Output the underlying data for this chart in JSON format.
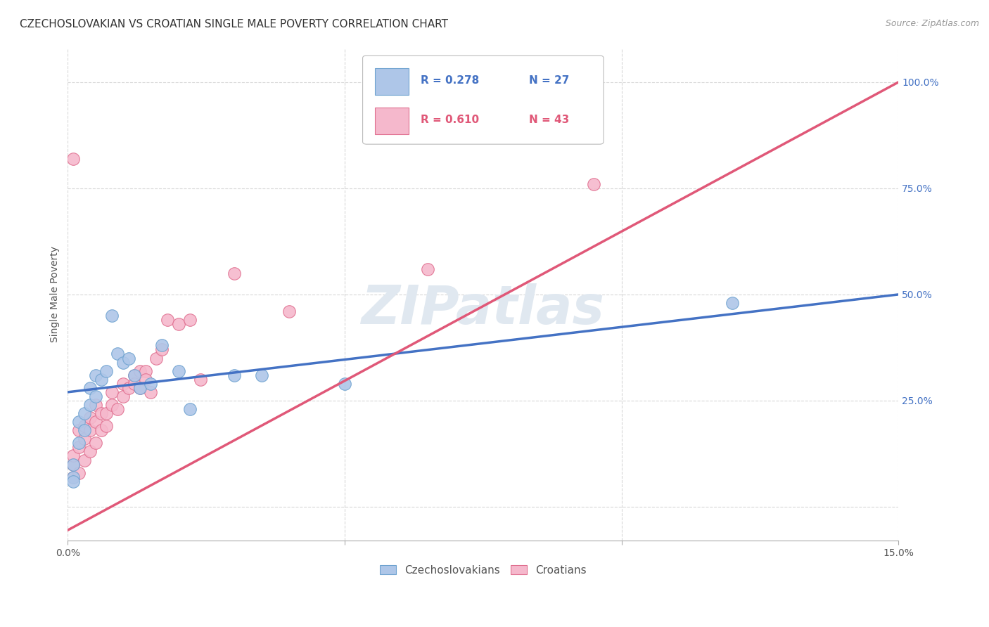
{
  "title": "CZECHOSLOVAKIAN VS CROATIAN SINGLE MALE POVERTY CORRELATION CHART",
  "source": "Source: ZipAtlas.com",
  "ylabel": "Single Male Poverty",
  "xlim": [
    0.0,
    0.15
  ],
  "ylim": [
    -0.08,
    1.08
  ],
  "xticks": [
    0.0,
    0.05,
    0.1,
    0.15
  ],
  "xticklabels": [
    "0.0%",
    "",
    "",
    "15.0%"
  ],
  "yticks_right": [
    0.25,
    0.5,
    0.75,
    1.0
  ],
  "yticklabels_right": [
    "25.0%",
    "50.0%",
    "75.0%",
    "100.0%"
  ],
  "background_color": "#ffffff",
  "grid_color": "#d8d8d8",
  "watermark": "ZIPatlas",
  "watermark_color": "#e0e8f0",
  "czecho_color": "#aec6e8",
  "czecho_edge": "#6fa3d0",
  "czecho_line_color": "#4472c4",
  "czecho_R": 0.278,
  "czecho_N": 27,
  "czecho_x": [
    0.001,
    0.001,
    0.002,
    0.002,
    0.003,
    0.003,
    0.004,
    0.004,
    0.005,
    0.005,
    0.006,
    0.007,
    0.008,
    0.009,
    0.01,
    0.011,
    0.012,
    0.013,
    0.015,
    0.017,
    0.02,
    0.022,
    0.03,
    0.035,
    0.05,
    0.12,
    0.001
  ],
  "czecho_y": [
    0.07,
    0.1,
    0.15,
    0.2,
    0.22,
    0.18,
    0.24,
    0.28,
    0.26,
    0.31,
    0.3,
    0.32,
    0.45,
    0.36,
    0.34,
    0.35,
    0.31,
    0.28,
    0.29,
    0.38,
    0.32,
    0.23,
    0.31,
    0.31,
    0.29,
    0.48,
    0.06
  ],
  "croatian_color": "#f5b8cc",
  "croatian_edge": "#e07090",
  "croatian_line_color": "#e05878",
  "croatian_R": 0.61,
  "croatian_N": 43,
  "croatian_x": [
    0.001,
    0.001,
    0.001,
    0.002,
    0.002,
    0.002,
    0.003,
    0.003,
    0.003,
    0.004,
    0.004,
    0.004,
    0.005,
    0.005,
    0.005,
    0.006,
    0.006,
    0.007,
    0.007,
    0.008,
    0.008,
    0.009,
    0.01,
    0.01,
    0.011,
    0.012,
    0.012,
    0.013,
    0.013,
    0.014,
    0.014,
    0.015,
    0.016,
    0.017,
    0.018,
    0.02,
    0.022,
    0.024,
    0.03,
    0.04,
    0.065,
    0.095,
    0.001
  ],
  "croatian_y": [
    0.07,
    0.1,
    0.12,
    0.08,
    0.14,
    0.18,
    0.11,
    0.16,
    0.19,
    0.13,
    0.18,
    0.21,
    0.15,
    0.2,
    0.24,
    0.18,
    0.22,
    0.19,
    0.22,
    0.24,
    0.27,
    0.23,
    0.26,
    0.29,
    0.28,
    0.31,
    0.29,
    0.32,
    0.28,
    0.32,
    0.3,
    0.27,
    0.35,
    0.37,
    0.44,
    0.43,
    0.44,
    0.3,
    0.55,
    0.46,
    0.56,
    0.76,
    0.82
  ],
  "czecho_line_x0": 0.0,
  "czecho_line_y0": 0.27,
  "czecho_line_x1": 0.15,
  "czecho_line_y1": 0.5,
  "croatian_line_x0": 0.0,
  "croatian_line_y0": -0.055,
  "croatian_line_x1": 0.15,
  "croatian_line_y1": 1.0,
  "bottom_legend_czecho": "Czechoslovakians",
  "bottom_legend_croatian": "Croatians",
  "title_fontsize": 11,
  "axis_label_fontsize": 10,
  "tick_fontsize": 10,
  "legend_fontsize": 11,
  "source_fontsize": 9,
  "watermark_fontsize": 55
}
